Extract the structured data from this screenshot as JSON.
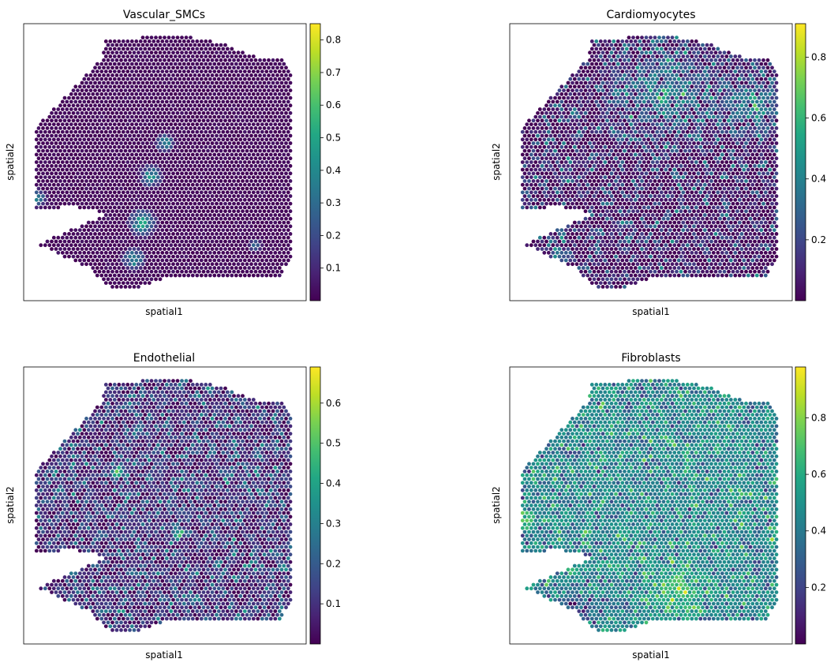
{
  "chart_data": [
    {
      "type": "scatter",
      "title": "Vascular_SMCs",
      "xlabel": "spatial1",
      "ylabel": "spatial2",
      "colorbar": {
        "colormap": "viridis",
        "range": [
          0.0,
          0.85
        ],
        "ticks": [
          "0.1",
          "0.2",
          "0.3",
          "0.4",
          "0.5",
          "0.6",
          "0.7",
          "0.8"
        ],
        "tick_values": [
          0.1,
          0.2,
          0.3,
          0.4,
          0.5,
          0.6,
          0.7,
          0.8
        ]
      },
      "pattern": {
        "base": 0.02,
        "noise": 0.04,
        "hot": [
          {
            "x": 0.45,
            "y": 0.55,
            "r": 0.05,
            "v": 0.55
          },
          {
            "x": 0.5,
            "y": 0.43,
            "r": 0.04,
            "v": 0.6
          },
          {
            "x": 0.42,
            "y": 0.72,
            "r": 0.06,
            "v": 0.65
          },
          {
            "x": 0.39,
            "y": 0.85,
            "r": 0.05,
            "v": 0.55
          },
          {
            "x": 0.05,
            "y": 0.63,
            "r": 0.04,
            "v": 0.5
          },
          {
            "x": 0.82,
            "y": 0.8,
            "r": 0.03,
            "v": 0.4
          }
        ]
      }
    },
    {
      "type": "scatter",
      "title": "Cardiomyocytes",
      "xlabel": "spatial1",
      "ylabel": "spatial2",
      "colorbar": {
        "colormap": "viridis",
        "range": [
          0.0,
          0.91
        ],
        "ticks": [
          "0.2",
          "0.4",
          "0.6",
          "0.8"
        ],
        "tick_values": [
          0.2,
          0.4,
          0.6,
          0.8
        ]
      },
      "pattern": {
        "base": 0.05,
        "noise": 0.45,
        "hot": [
          {
            "x": 0.55,
            "y": 0.25,
            "r": 0.25,
            "v": 0.45
          },
          {
            "x": 0.85,
            "y": 0.3,
            "r": 0.15,
            "v": 0.45
          },
          {
            "x": 0.15,
            "y": 0.88,
            "r": 0.1,
            "v": 0.5
          },
          {
            "x": 0.98,
            "y": 0.25,
            "r": 0.04,
            "v": 0.85
          }
        ]
      }
    },
    {
      "type": "scatter",
      "title": "Endothelial",
      "xlabel": "spatial1",
      "ylabel": "spatial2",
      "colorbar": {
        "colormap": "viridis",
        "range": [
          0.0,
          0.69
        ],
        "ticks": [
          "0.1",
          "0.2",
          "0.3",
          "0.4",
          "0.5",
          "0.6"
        ],
        "tick_values": [
          0.1,
          0.2,
          0.3,
          0.4,
          0.5,
          0.6
        ]
      },
      "pattern": {
        "base": 0.1,
        "noise": 0.3,
        "hot": [
          {
            "x": 0.33,
            "y": 0.38,
            "r": 0.03,
            "v": 0.6
          },
          {
            "x": 0.55,
            "y": 0.6,
            "r": 0.03,
            "v": 0.55
          },
          {
            "x": 0.68,
            "y": 0.93,
            "r": 0.02,
            "v": 0.6
          }
        ]
      }
    },
    {
      "type": "scatter",
      "title": "Fibroblasts",
      "xlabel": "spatial1",
      "ylabel": "spatial2",
      "colorbar": {
        "colormap": "viridis",
        "range": [
          0.0,
          0.98
        ],
        "ticks": [
          "0.2",
          "0.4",
          "0.6",
          "0.8"
        ],
        "tick_values": [
          0.2,
          0.4,
          0.6,
          0.8
        ]
      },
      "pattern": {
        "base": 0.45,
        "noise": 0.35,
        "hot": [
          {
            "x": 0.6,
            "y": 0.8,
            "r": 0.15,
            "v": 0.3
          },
          {
            "x": 0.05,
            "y": 0.55,
            "r": 0.06,
            "v": 0.35
          },
          {
            "x": 0.95,
            "y": 0.6,
            "r": 0.05,
            "v": 0.3
          },
          {
            "x": 0.25,
            "y": 0.88,
            "r": 0.1,
            "v": -0.35
          }
        ]
      }
    }
  ]
}
